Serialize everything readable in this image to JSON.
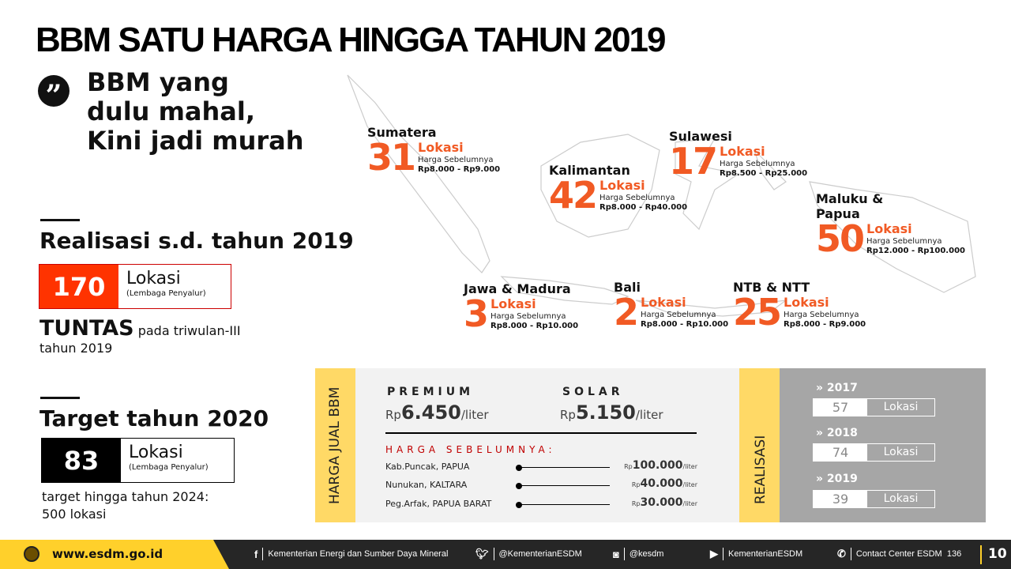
{
  "title": "BBM SATU HARGA HINGGA TAHUN 2019",
  "tagline": [
    "BBM yang",
    "dulu mahal,",
    "Kini jadi murah"
  ],
  "realisasi": {
    "heading": "Realisasi s.d. tahun 2019",
    "value": "170",
    "unit": "Lokasi",
    "note": "(Lembaga Penyalur)",
    "status_bold": "TUNTAS",
    "status_rest": " pada triwulan-III",
    "status_line2": "tahun 2019",
    "color": "#ff3300"
  },
  "target": {
    "heading": "Target tahun 2020",
    "value": "83",
    "unit": "Lokasi",
    "note": "(Lembaga Penyalur)",
    "line1": "target hingga tahun 2024:",
    "line2": "500 lokasi"
  },
  "regions": [
    {
      "name": "Sumatera",
      "count": "31",
      "lokasi": "Lokasi",
      "label": "Harga Sebelumnya",
      "range": "Rp8.000 - Rp9.000"
    },
    {
      "name": "Kalimantan",
      "count": "42",
      "lokasi": "Lokasi",
      "label": "Harga Sebelumnya",
      "range": "Rp8.000 - Rp40.000"
    },
    {
      "name": "Sulawesi",
      "count": "17",
      "lokasi": "Lokasi",
      "label": "Harga Sebelumnya",
      "range": "Rp8.500 - Rp25.000"
    },
    {
      "name": "Maluku & Papua",
      "count": "50",
      "lokasi": "Lokasi",
      "label": "Harga Sebelumnya",
      "range": "Rp12.000 - Rp100.000"
    },
    {
      "name": "Jawa & Madura",
      "count": "3",
      "lokasi": "Lokasi",
      "label": "Harga Sebelumnya",
      "range": "Rp8.000 - Rp10.000"
    },
    {
      "name": "Bali",
      "count": "2",
      "lokasi": "Lokasi",
      "label": "Harga Sebelumnya",
      "range": "Rp8.000 - Rp10.000"
    },
    {
      "name": "NTB & NTT",
      "count": "25",
      "lokasi": "Lokasi",
      "label": "Harga Sebelumnya",
      "range": "Rp8.000 - Rp9.000"
    }
  ],
  "harga": {
    "side_label": "HARGA JUAL BBM",
    "premium": {
      "label": "PREMIUM",
      "rp": "Rp",
      "value": "6.450",
      "unit": "/liter"
    },
    "solar": {
      "label": "SOLAR",
      "rp": "Rp",
      "value": "5.150",
      "unit": "/liter"
    },
    "prev_heading": "HARGA SEBELUMNYA:",
    "prev": [
      {
        "place": "Kab.Puncak, PAPUA",
        "rp": "Rp",
        "value": "100.000",
        "unit": "/liter"
      },
      {
        "place": "Nunukan, KALTARA",
        "rp": "Rp",
        "value": "40.000",
        "unit": "/liter"
      },
      {
        "place": "Peg.Arfak, PAPUA BARAT",
        "rp": "Rp",
        "value": "30.000",
        "unit": "/liter"
      }
    ]
  },
  "realisasi_panel": {
    "side_label": "REALISASI",
    "years": [
      {
        "year": "» 2017",
        "value": "57",
        "unit": "Lokasi"
      },
      {
        "year": "» 2018",
        "value": "74",
        "unit": "Lokasi"
      },
      {
        "year": "» 2019",
        "value": "39",
        "unit": "Lokasi"
      }
    ]
  },
  "footer": {
    "website": "www.esdm.go.id",
    "facebook": "Kementerian Energi dan Sumber Daya Mineral",
    "twitter": "@KementerianESDM",
    "instagram": "@kesdm",
    "youtube": "KementerianESDM",
    "contact": "Contact Center ESDM  136",
    "page": "10"
  },
  "colors": {
    "accent": "#f15a24",
    "yellow": "#ffd966",
    "footer_yellow": "#ffd02b",
    "dark": "#262626",
    "red_label": "#c00000"
  }
}
